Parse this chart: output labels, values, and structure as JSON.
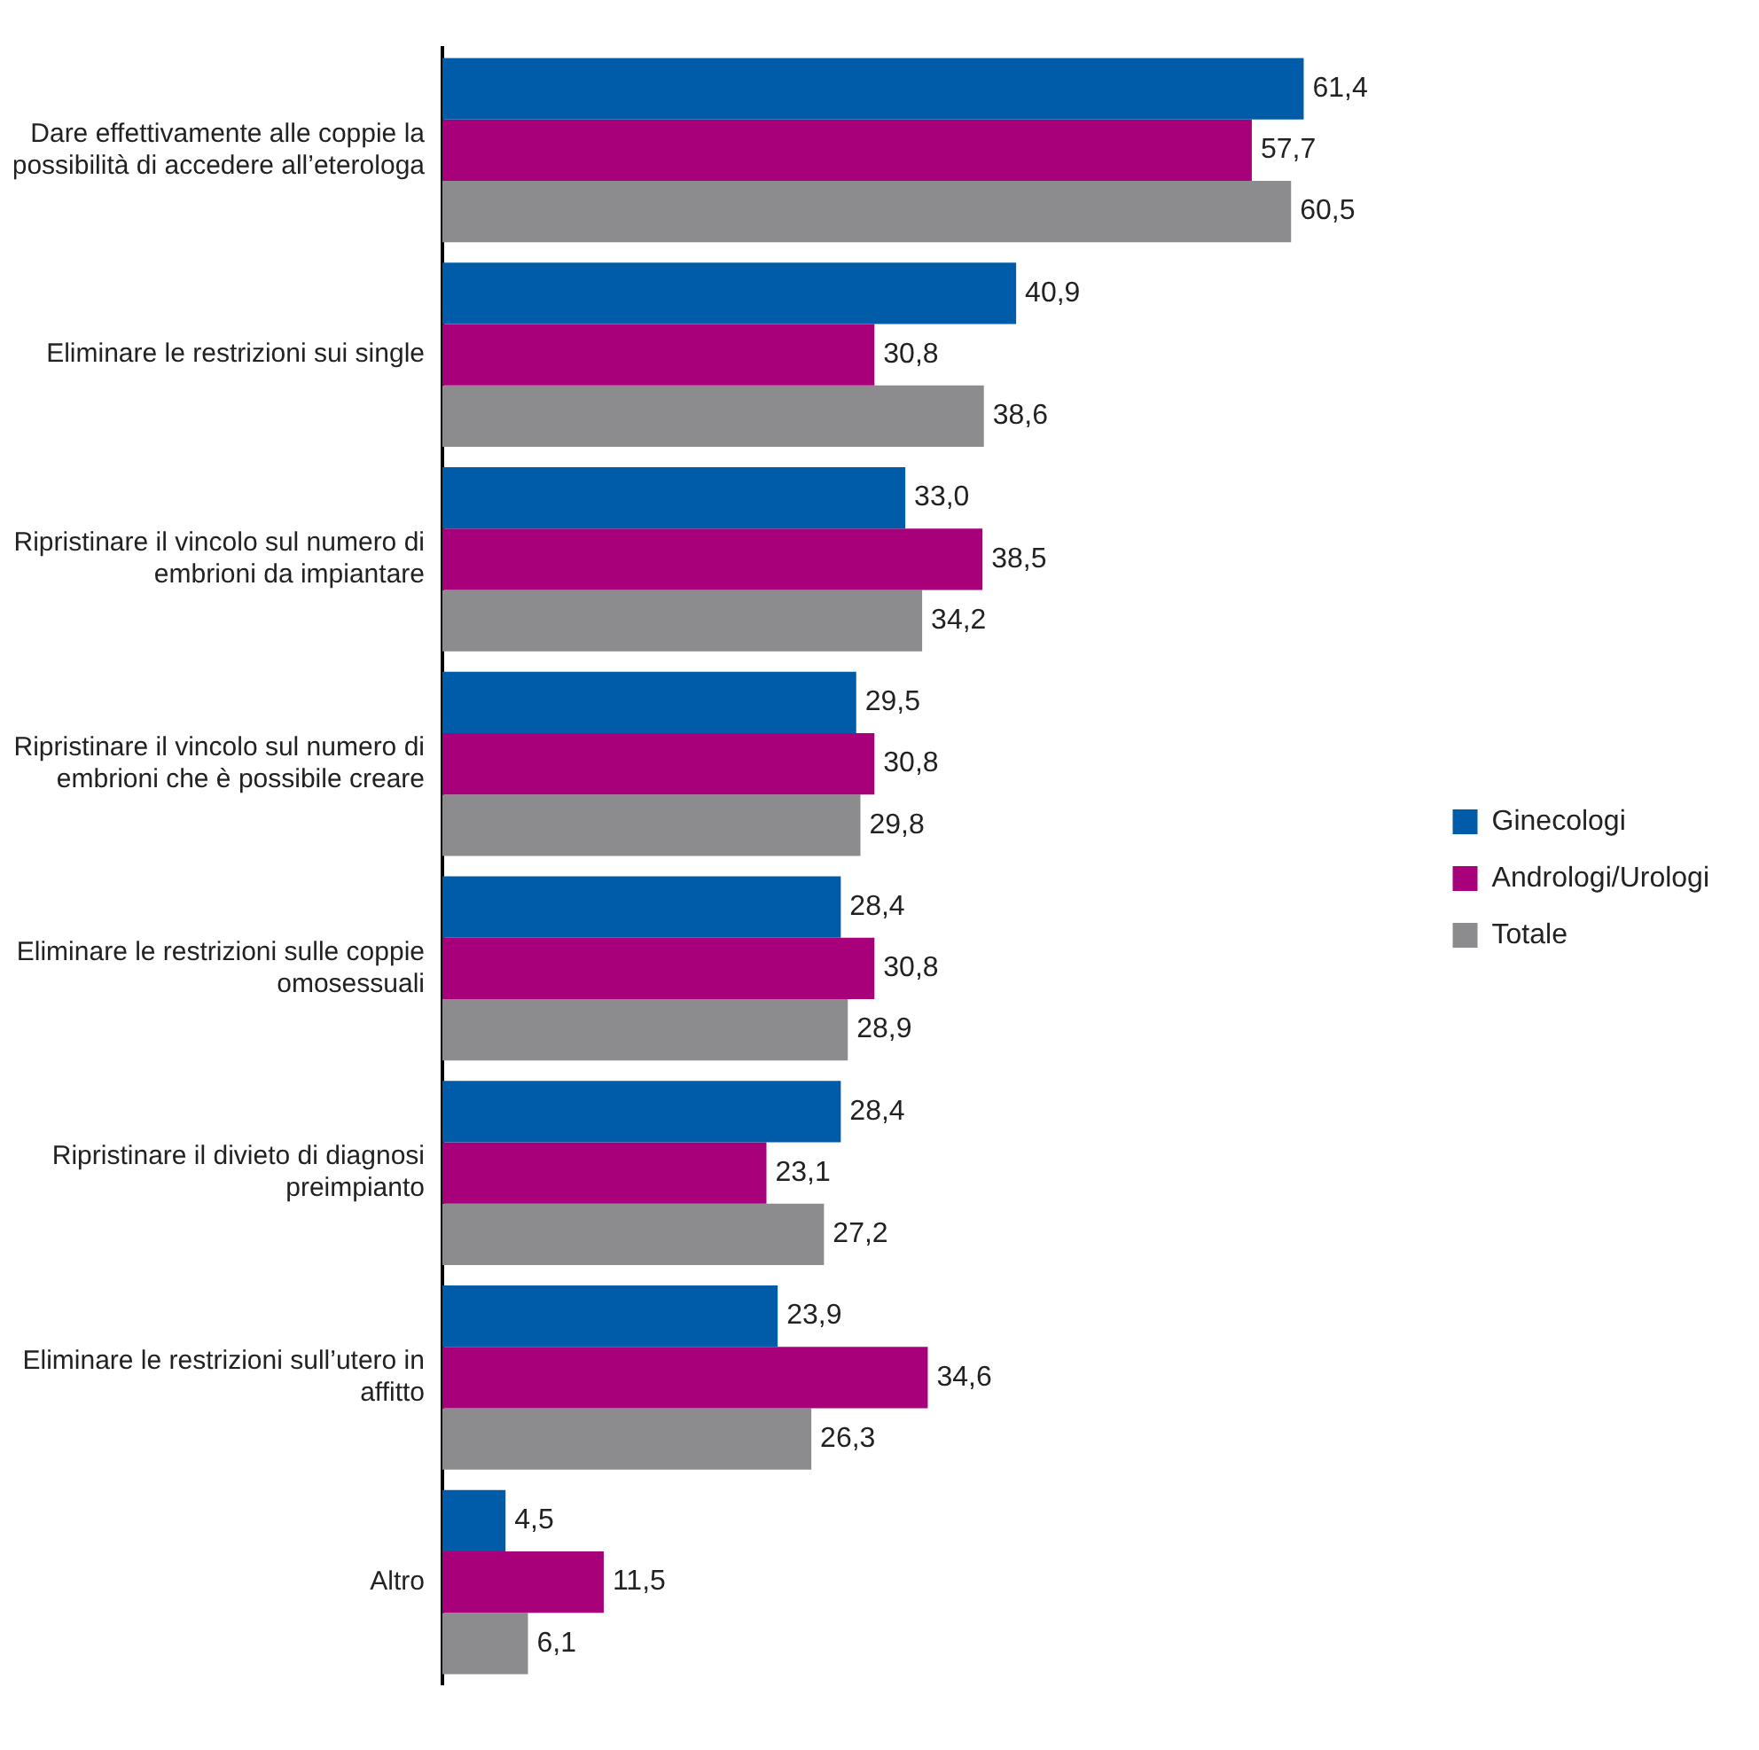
{
  "chart_data": {
    "type": "bar",
    "orientation": "horizontal",
    "categories": [
      "Dare effettivamente alle coppie la possibilità di accedere all’eterologa",
      "Eliminare le restrizioni sui single",
      "Ripristinare il vincolo sul numero di embrioni da impiantare",
      "Ripristinare il vincolo sul numero di embrioni che è possibile creare",
      "Eliminare le restrizioni sulle coppie omosessuali",
      "Ripristinare il divieto di diagnosi preimpianto",
      "Eliminare le restrizioni sull’utero in affitto",
      "Altro"
    ],
    "series": [
      {
        "name": "Ginecologi",
        "color": "#005ca8",
        "values": [
          61.4,
          40.9,
          33.0,
          29.5,
          28.4,
          28.4,
          23.9,
          4.5
        ],
        "value_labels": [
          "61,4",
          "40,9",
          "33,0",
          "29,5",
          "28,4",
          "28,4",
          "23,9",
          "4,5"
        ]
      },
      {
        "name": "Andrologi/Urologi",
        "color": "#a8007a",
        "values": [
          57.7,
          30.8,
          38.5,
          30.8,
          30.8,
          23.1,
          34.6,
          11.5
        ],
        "value_labels": [
          "57,7",
          "30,8",
          "38,5",
          "30,8",
          "30,8",
          "23,1",
          "34,6",
          "11,5"
        ]
      },
      {
        "name": "Totale",
        "color": "#8c8c8e",
        "values": [
          60.5,
          38.6,
          34.2,
          29.8,
          28.9,
          27.2,
          26.3,
          6.1
        ],
        "value_labels": [
          "60,5",
          "38,6",
          "34,2",
          "29,8",
          "28,9",
          "27,2",
          "26,3",
          "6,1"
        ]
      }
    ],
    "legend": "right",
    "grid": false,
    "tick_labels": "y"
  }
}
